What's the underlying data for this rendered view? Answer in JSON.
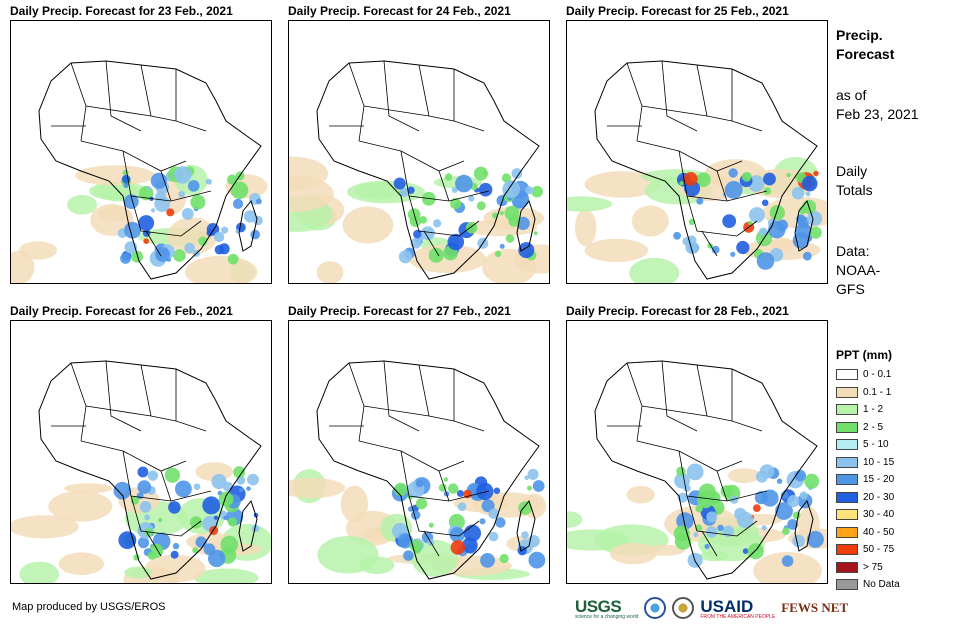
{
  "panels": [
    {
      "title": "Daily Precip. Forecast for 23 Feb., 2021"
    },
    {
      "title": "Daily Precip. Forecast for 24 Feb., 2021"
    },
    {
      "title": "Daily Precip. Forecast for 25 Feb., 2021"
    },
    {
      "title": "Daily Precip. Forecast for 26 Feb., 2021"
    },
    {
      "title": "Daily Precip. Forecast for 27 Feb., 2021"
    },
    {
      "title": "Daily Precip. Forecast for 28 Feb., 2021"
    }
  ],
  "info": {
    "title_line1": "Precip.",
    "title_line2": "Forecast",
    "asof_line1": "as of",
    "asof_line2": "Feb 23, 2021",
    "totals_line1": "Daily",
    "totals_line2": "Totals",
    "data_line1": "Data:",
    "data_line2": "NOAA-",
    "data_line3": "GFS"
  },
  "legend": {
    "title": "PPT (mm)",
    "items": [
      {
        "label": "0 - 0.1",
        "color": "#ffffff"
      },
      {
        "label": "0.1 - 1",
        "color": "#f3dcb8"
      },
      {
        "label": "1 - 2",
        "color": "#b6f2a9"
      },
      {
        "label": "2 - 5",
        "color": "#70e06a"
      },
      {
        "label": "5 - 10",
        "color": "#b3ecf2"
      },
      {
        "label": "10 - 15",
        "color": "#8cc3ee"
      },
      {
        "label": "15 - 20",
        "color": "#4f95e8"
      },
      {
        "label": "20 - 30",
        "color": "#1f5fe0"
      },
      {
        "label": "30 - 40",
        "color": "#ffe27a"
      },
      {
        "label": "40 - 50",
        "color": "#ffa31a"
      },
      {
        "label": "50 - 75",
        "color": "#f03c0c"
      },
      {
        "label": "> 75",
        "color": "#a3151a"
      },
      {
        "label": "No Data",
        "color": "#999999"
      }
    ]
  },
  "footer": {
    "text": "Map produced by USGS/EROS"
  },
  "logos": {
    "usgs": "USGS",
    "usgs_tagline": "science for a changing world",
    "usaid": "USAID",
    "usaid_tagline": "FROM THE AMERICAN PEOPLE",
    "fews": "FEWS NET"
  }
}
